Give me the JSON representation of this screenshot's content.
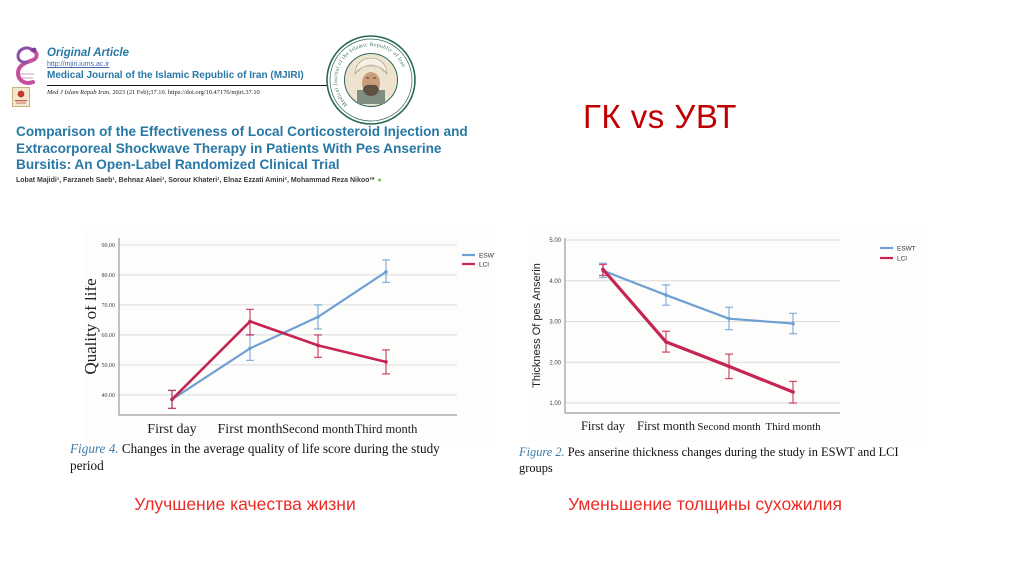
{
  "slide": {
    "title_red": "ГК vs УВТ",
    "red_caption_left": "Улучшение качества жизни",
    "red_caption_right": "Уменьшение толщины сухожилия"
  },
  "journal": {
    "article_type": "Original Article",
    "url": "http://mjiri.iums.ac.ir",
    "name": "Medical Journal of the Islamic Republic of Iran (MJIRI)",
    "citation_italic": "Med J Islam Repub Iran.",
    "citation_rest": " 2023 (21 Feb);37.10. https://doi.org/10.47176/mjiri.37.10",
    "seal_text": "Medical Journal of the Islamic Republic of Iran",
    "orcid_dot": "●"
  },
  "article": {
    "title_lines": [
      "Comparison of the Effectiveness of Local Corticosteroid Injection and",
      "Extracorporeal Shockwave Therapy in Patients With Pes Anserine",
      "Bursitis: An Open-Label Randomized Clinical Trial"
    ],
    "authors": "Lobat Majidi¹, Farzaneh Saeb¹, Behnaz Alaei¹, Sorour Khateri¹, Elnaz Ezzati Amini², Mohammad Reza Nikoo³*"
  },
  "figures": {
    "left": {
      "label": "Figure 4.",
      "caption": " Changes in the average quality of life score during the study period"
    },
    "right": {
      "label": "Figure 2.",
      "caption": " Pes anserine thickness changes during the study in ESWT and LCI groups"
    }
  },
  "colors": {
    "accent_teal": "#2878A6",
    "red_title": "#C00000",
    "red_caption": "#EC2B25",
    "eswt_blue": "#6FA0D4",
    "lci_red": "#C42554",
    "grid": "#DBDBDB",
    "axis": "#999999"
  },
  "chart_data": [
    {
      "id": "qol",
      "type": "line",
      "title": "",
      "xlabel": "",
      "ylabel": "Quality of life",
      "categories": [
        "First day",
        "First month",
        "Second month",
        "Third month"
      ],
      "yticks": [
        40,
        50,
        60,
        70,
        80,
        90
      ],
      "ytick_labels": [
        "40.00",
        "50.00",
        "60.00",
        "70.00",
        "80.00",
        "90.00"
      ],
      "ylim": [
        33.3,
        92.3
      ],
      "grid": true,
      "legend_position": "top-right-outside",
      "series": [
        {
          "name": "ESWT",
          "color": "#6FA0D4",
          "values": [
            38.5,
            55.5,
            66.0,
            81.0
          ],
          "err_low": [
            35.5,
            51.5,
            62.0,
            77.5
          ],
          "err_high": [
            41.5,
            60.0,
            70.0,
            85.0
          ]
        },
        {
          "name": "LCI",
          "color": "#C42554",
          "values": [
            38.5,
            64.5,
            56.5,
            51.0
          ],
          "err_low": [
            35.5,
            60.0,
            52.5,
            47.0
          ],
          "err_high": [
            41.5,
            68.5,
            60.0,
            55.0
          ]
        }
      ]
    },
    {
      "id": "thickness",
      "type": "line",
      "title": "",
      "xlabel": "",
      "ylabel": "Thickness Of pes Anserin",
      "categories": [
        "First day",
        "First month",
        "Second month",
        "Third month"
      ],
      "yticks": [
        1,
        2,
        3,
        4,
        5
      ],
      "ytick_labels": [
        "1.00",
        "2.00",
        "3.00",
        "4.00",
        "5.00"
      ],
      "ylim": [
        0.755,
        5.05
      ],
      "grid": true,
      "legend_position": "top-right-outside",
      "series": [
        {
          "name": "ESWT",
          "color": "#6FA0D4",
          "values": [
            4.25,
            3.65,
            3.07,
            2.95
          ],
          "err_low": [
            4.08,
            3.4,
            2.8,
            2.7
          ],
          "err_high": [
            4.43,
            3.9,
            3.35,
            3.2
          ]
        },
        {
          "name": "LCI",
          "color": "#C42554",
          "values": [
            4.28,
            2.5,
            1.9,
            1.27
          ],
          "err_low": [
            4.13,
            2.25,
            1.6,
            1.0
          ],
          "err_high": [
            4.4,
            2.76,
            2.2,
            1.53
          ]
        }
      ]
    }
  ]
}
